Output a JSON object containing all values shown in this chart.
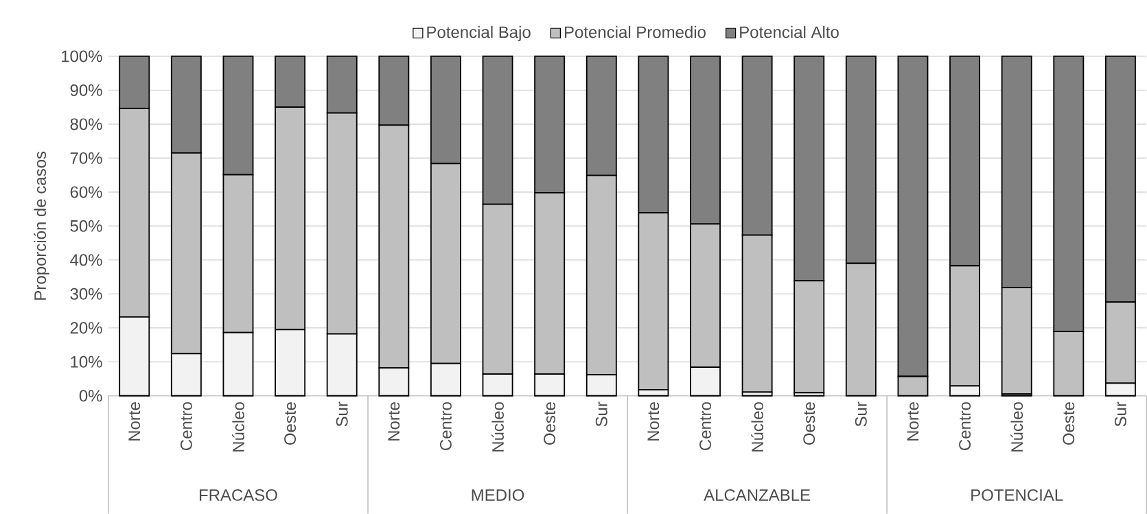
{
  "chart_data": {
    "type": "bar",
    "stacked": true,
    "ylabel": "Proporción de casos",
    "categories": [
      "Norte",
      "Centro",
      "Núcleo",
      "Oeste",
      "Sur",
      "Norte",
      "Centro",
      "Núcleo",
      "Oeste",
      "Sur",
      "Norte",
      "Centro",
      "Núcleo",
      "Oeste",
      "Sur",
      "Norte",
      "Centro",
      "Núcleo",
      "Oeste",
      "Sur"
    ],
    "series": [
      {
        "name": "Potencial Bajo",
        "color": "#f2f2f2",
        "values": [
          23.2,
          12.4,
          18.6,
          19.5,
          18.2,
          8.2,
          9.5,
          6.4,
          6.4,
          6.2,
          1.8,
          8.4,
          1.1,
          0.9,
          0,
          0,
          2.9,
          0.5,
          0,
          3.7
        ]
      },
      {
        "name": "Potencial Promedio",
        "color": "#bfbfbf",
        "values": [
          61.4,
          59.1,
          46.5,
          65.5,
          65.1,
          71.5,
          58.9,
          50.0,
          53.4,
          58.7,
          52.1,
          42.2,
          46.2,
          33.0,
          39.0,
          5.7,
          35.4,
          31.4,
          18.9,
          23.9
        ]
      },
      {
        "name": "Potencial Alto",
        "color": "#808080",
        "values": [
          15.4,
          28.5,
          34.9,
          15.0,
          16.7,
          20.3,
          31.6,
          43.6,
          40.2,
          35.1,
          46.1,
          49.4,
          52.7,
          66.1,
          61.0,
          94.3,
          61.7,
          68.1,
          81.1,
          72.4
        ]
      }
    ],
    "ylim": [
      0,
      100
    ],
    "yticks": [
      {
        "value": 0,
        "label": "0%"
      },
      {
        "value": 10,
        "label": "10%"
      },
      {
        "value": 20,
        "label": "20%"
      },
      {
        "value": 30,
        "label": "30%"
      },
      {
        "value": 40,
        "label": "40%"
      },
      {
        "value": 50,
        "label": "50%"
      },
      {
        "value": 60,
        "label": "60%"
      },
      {
        "value": 70,
        "label": "70%"
      },
      {
        "value": 80,
        "label": "80%"
      },
      {
        "value": 90,
        "label": "90%"
      },
      {
        "value": 100,
        "label": "100%"
      }
    ],
    "grid": "y",
    "legend": "top",
    "annotations": [
      "FRACASO",
      "MEDIO",
      "ALCANZABLE",
      "POTENCIAL"
    ]
  }
}
